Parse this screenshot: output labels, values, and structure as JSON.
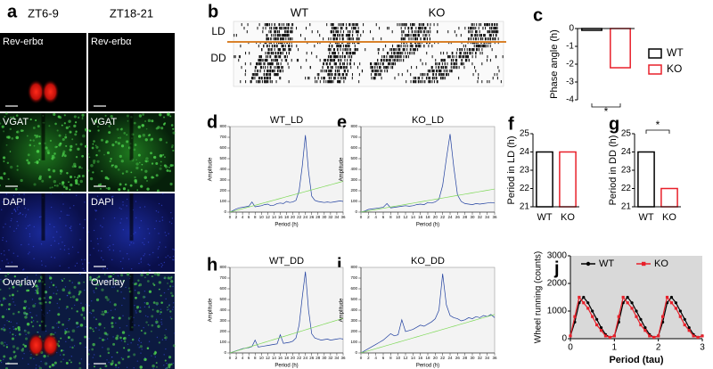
{
  "panel_labels": [
    "a",
    "b",
    "c",
    "d",
    "e",
    "f",
    "g",
    "h",
    "i",
    "j"
  ],
  "images": {
    "columns": [
      "ZT6-9",
      "ZT18-21"
    ],
    "rows": [
      "Rev-erbα",
      "VGAT",
      "DAPI",
      "Overlay"
    ]
  },
  "actogram": {
    "groups": [
      "WT",
      "KO"
    ],
    "conditions": [
      "LD",
      "DD"
    ]
  },
  "chart_data": [
    {
      "type": "bar",
      "ylabel": "Phase angle (h)",
      "ylim": [
        -4,
        0
      ],
      "yticks": [
        -4,
        -3,
        -2,
        -1,
        0
      ],
      "series": [
        {
          "name": "WT",
          "color": "#000000",
          "values": [
            -0.1
          ]
        },
        {
          "name": "KO",
          "color": "#e8202a",
          "values": [
            -2.2
          ]
        }
      ],
      "legend": "right",
      "annotation": "*",
      "annotation_position": "bottom"
    },
    {
      "type": "line",
      "title": "WT_LD",
      "xlabel": "Period (h)",
      "ylabel": "Amplitude",
      "background": "#f3f3f3",
      "frame": true,
      "xlim": [
        0,
        36
      ],
      "xticks": [
        0,
        2,
        4,
        6,
        8,
        10,
        12,
        14,
        16,
        18,
        20,
        22,
        24,
        26,
        28,
        30,
        32,
        34,
        36
      ],
      "ylim": [
        0,
        800
      ],
      "yticks": [
        0,
        100,
        200,
        300,
        400,
        500,
        600,
        700,
        800
      ],
      "x": [
        0,
        1,
        2,
        3,
        4,
        5,
        6,
        7,
        8,
        9,
        10,
        11,
        12,
        13,
        14,
        15,
        16,
        17,
        18,
        19,
        20,
        21,
        22,
        23,
        24,
        25,
        26,
        27,
        28,
        29,
        30,
        31,
        32,
        33,
        34,
        35,
        36
      ],
      "series": [
        {
          "color": "#1f3f9f",
          "values": [
            0,
            15,
            30,
            40,
            45,
            50,
            55,
            95,
            50,
            55,
            60,
            70,
            75,
            60,
            65,
            80,
            85,
            80,
            100,
            90,
            95,
            110,
            200,
            430,
            720,
            380,
            150,
            110,
            100,
            95,
            90,
            95,
            90,
            95,
            100,
            105,
            100
          ]
        },
        {
          "color": "#7ed957",
          "values": [
            0,
            8,
            16,
            24,
            32,
            40,
            48,
            56,
            64,
            72,
            80,
            88,
            96,
            104,
            112,
            120,
            128,
            136,
            144,
            152,
            160,
            168,
            176,
            184,
            192,
            200,
            208,
            216,
            224,
            232,
            240,
            248,
            256,
            264,
            272,
            280,
            288
          ]
        }
      ]
    },
    {
      "type": "line",
      "title": "KO_LD",
      "xlabel": "Period (h)",
      "ylabel": "Amplitude",
      "background": "#f3f3f3",
      "frame": true,
      "xlim": [
        0,
        36
      ],
      "xticks": [
        0,
        2,
        4,
        6,
        8,
        10,
        12,
        14,
        16,
        18,
        20,
        22,
        24,
        26,
        28,
        30,
        32,
        34,
        36
      ],
      "ylim": [
        0,
        800
      ],
      "yticks": [
        0,
        100,
        200,
        300,
        400,
        500,
        600,
        700,
        800
      ],
      "x": [
        0,
        1,
        2,
        3,
        4,
        5,
        6,
        7,
        8,
        9,
        10,
        11,
        12,
        13,
        14,
        15,
        16,
        17,
        18,
        19,
        20,
        21,
        22,
        23,
        24,
        25,
        26,
        27,
        28,
        29,
        30,
        31,
        32,
        33,
        34,
        35,
        36
      ],
      "series": [
        {
          "color": "#1f3f9f",
          "values": [
            0,
            10,
            25,
            30,
            35,
            40,
            45,
            80,
            40,
            45,
            50,
            55,
            60,
            55,
            60,
            70,
            75,
            70,
            90,
            85,
            95,
            120,
            250,
            500,
            730,
            420,
            160,
            100,
            80,
            75,
            70,
            80,
            75,
            80,
            85,
            90,
            85
          ]
        },
        {
          "color": "#7ed957",
          "values": [
            0,
            6,
            12,
            18,
            24,
            30,
            36,
            42,
            48,
            54,
            60,
            66,
            72,
            78,
            84,
            90,
            96,
            102,
            108,
            114,
            120,
            126,
            132,
            138,
            144,
            150,
            156,
            162,
            168,
            174,
            180,
            186,
            192,
            198,
            204,
            210,
            216
          ]
        }
      ]
    },
    {
      "type": "bar",
      "ylabel": "Period in LD (h)",
      "ylim": [
        21,
        25
      ],
      "yticks": [
        21,
        22,
        23,
        24,
        25
      ],
      "categories": [
        "WT",
        "KO"
      ],
      "values": [
        24.0,
        24.0
      ],
      "colors": [
        "#000000",
        "#e8202a"
      ]
    },
    {
      "type": "bar",
      "ylabel": "Period in DD (h)",
      "ylim": [
        21,
        25
      ],
      "yticks": [
        21,
        22,
        23,
        24,
        25
      ],
      "categories": [
        "WT",
        "KO"
      ],
      "values": [
        24.0,
        22.0
      ],
      "colors": [
        "#000000",
        "#e8202a"
      ],
      "annotation": "*",
      "annotation_position": "top"
    },
    {
      "type": "line",
      "title": "WT_DD",
      "xlabel": "Period (h)",
      "ylabel": "Amplitude",
      "background": "#f3f3f3",
      "frame": true,
      "xlim": [
        0,
        36
      ],
      "xticks": [
        0,
        2,
        4,
        6,
        8,
        10,
        12,
        14,
        16,
        18,
        20,
        22,
        24,
        26,
        28,
        30,
        32,
        34,
        36
      ],
      "ylim": [
        0,
        800
      ],
      "yticks": [
        0,
        100,
        200,
        300,
        400,
        500,
        600,
        700,
        800
      ],
      "x": [
        0,
        1,
        2,
        3,
        4,
        5,
        6,
        7,
        8,
        9,
        10,
        11,
        12,
        13,
        14,
        15,
        16,
        17,
        18,
        19,
        20,
        21,
        22,
        23,
        24,
        25,
        26,
        27,
        28,
        29,
        30,
        31,
        32,
        33,
        34,
        35,
        36
      ],
      "series": [
        {
          "color": "#1f3f9f",
          "values": [
            0,
            10,
            20,
            30,
            40,
            45,
            50,
            60,
            120,
            55,
            60,
            65,
            70,
            75,
            80,
            85,
            170,
            90,
            95,
            100,
            110,
            140,
            260,
            520,
            760,
            400,
            180,
            140,
            130,
            120,
            125,
            130,
            120,
            125,
            130,
            135,
            130
          ]
        },
        {
          "color": "#7ed957",
          "values": [
            0,
            9,
            18,
            27,
            36,
            45,
            54,
            63,
            72,
            81,
            90,
            99,
            108,
            117,
            126,
            135,
            144,
            153,
            162,
            171,
            180,
            189,
            198,
            207,
            216,
            225,
            234,
            243,
            252,
            261,
            270,
            279,
            288,
            297,
            306,
            315,
            324
          ]
        }
      ]
    },
    {
      "type": "line",
      "title": "KO_DD",
      "xlabel": "Period (h)",
      "ylabel": "Amplitude",
      "background": "#f3f3f3",
      "frame": true,
      "xlim": [
        0,
        36
      ],
      "xticks": [
        0,
        2,
        4,
        6,
        8,
        10,
        12,
        14,
        16,
        18,
        20,
        22,
        24,
        26,
        28,
        30,
        32,
        34,
        36
      ],
      "ylim": [
        0,
        800
      ],
      "yticks": [
        0,
        100,
        200,
        300,
        400,
        500,
        600,
        700,
        800
      ],
      "x": [
        0,
        1,
        2,
        3,
        4,
        5,
        6,
        7,
        8,
        9,
        10,
        11,
        12,
        13,
        14,
        15,
        16,
        17,
        18,
        19,
        20,
        21,
        22,
        23,
        24,
        25,
        26,
        27,
        28,
        29,
        30,
        31,
        32,
        33,
        34,
        35,
        36
      ],
      "series": [
        {
          "color": "#1f3f9f",
          "values": [
            0,
            20,
            40,
            60,
            80,
            100,
            120,
            150,
            180,
            160,
            170,
            310,
            200,
            210,
            220,
            240,
            260,
            250,
            270,
            290,
            320,
            400,
            740,
            450,
            350,
            330,
            320,
            300,
            310,
            330,
            320,
            340,
            330,
            350,
            340,
            360,
            330
          ]
        },
        {
          "color": "#7ed957",
          "values": [
            0,
            10,
            20,
            30,
            40,
            50,
            60,
            70,
            80,
            90,
            100,
            110,
            120,
            130,
            140,
            150,
            160,
            170,
            180,
            190,
            200,
            210,
            220,
            230,
            240,
            250,
            260,
            270,
            280,
            290,
            300,
            310,
            320,
            330,
            340,
            350,
            360
          ]
        }
      ]
    },
    {
      "type": "line",
      "xlabel": "Period (tau)",
      "ylabel": "Wheel running (counts)",
      "background": "#d9d9d9",
      "legend": "top",
      "markers": true,
      "xlim": [
        0,
        3
      ],
      "xticks": [
        0,
        1,
        2,
        3
      ],
      "ylim": [
        0,
        3000
      ],
      "yticks": [
        0,
        1000,
        2000,
        3000
      ],
      "x": [
        0,
        0.1,
        0.2,
        0.3,
        0.4,
        0.5,
        0.6,
        0.7,
        0.8,
        0.9,
        1,
        1.1,
        1.2,
        1.3,
        1.4,
        1.5,
        1.6,
        1.7,
        1.8,
        1.9,
        2,
        2.1,
        2.2,
        2.3,
        2.4,
        2.5,
        2.6,
        2.7,
        2.8,
        2.9,
        3
      ],
      "series": [
        {
          "name": "WT",
          "color": "#000000",
          "values": [
            100,
            600,
            1300,
            1500,
            1300,
            1000,
            700,
            400,
            150,
            50,
            100,
            600,
            1300,
            1500,
            1300,
            1000,
            700,
            400,
            150,
            50,
            100,
            600,
            1300,
            1500,
            1300,
            1000,
            700,
            400,
            150,
            50,
            100
          ]
        },
        {
          "name": "KO",
          "color": "#e8202a",
          "values": [
            100,
            800,
            1500,
            1300,
            1100,
            800,
            500,
            300,
            100,
            50,
            100,
            800,
            1500,
            1300,
            1100,
            800,
            500,
            300,
            100,
            50,
            100,
            800,
            1500,
            1300,
            1100,
            800,
            500,
            300,
            100,
            50,
            100
          ]
        }
      ]
    }
  ]
}
